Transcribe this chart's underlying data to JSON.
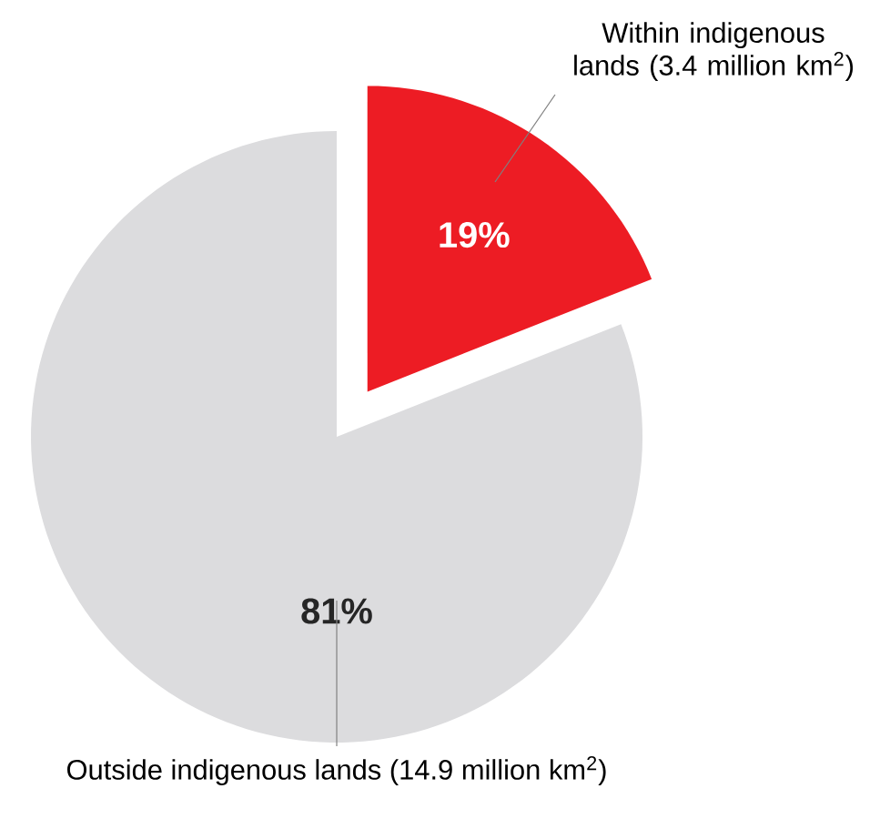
{
  "chart_data": {
    "type": "pie",
    "categories": [
      "Within indigenous lands (3.4 million km$^{2}$)",
      "Outside indigenous lands (14.9 million km$^{2}$)"
    ],
    "values": [
      19,
      81
    ],
    "colors": [
      "#ed1c24",
      "#dcdcde"
    ],
    "value_labels": [
      "19%",
      "81%"
    ],
    "legend": false
  }
}
